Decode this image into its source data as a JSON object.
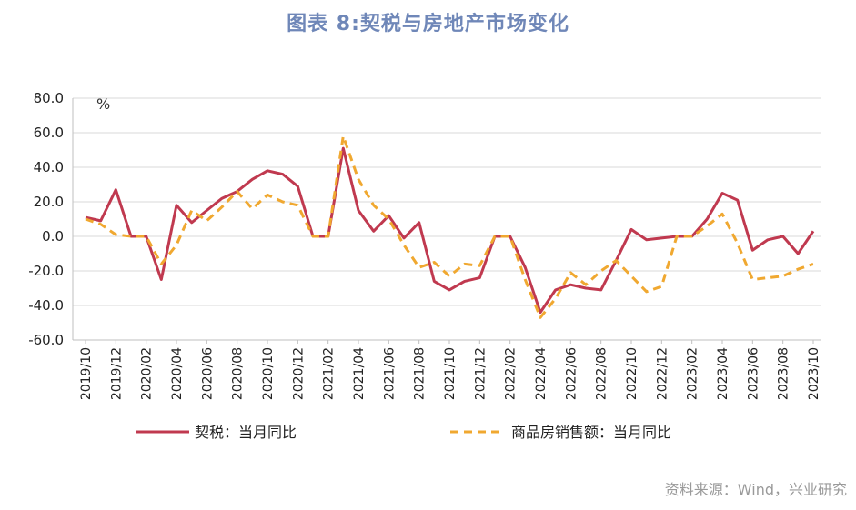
{
  "title": "图表 8:契税与房地产市场变化",
  "source": "资料来源：Wind，兴业研究",
  "chart_data": {
    "type": "line",
    "unit_label": "%",
    "ylim": [
      -60,
      80
    ],
    "yticks": [
      "80.0",
      "60.0",
      "40.0",
      "20.0",
      "0.0",
      "-20.0",
      "-40.0",
      "-60.0"
    ],
    "x": [
      "2019/10",
      "2019/11",
      "2019/12",
      "2020/01",
      "2020/02",
      "2020/03",
      "2020/04",
      "2020/05",
      "2020/06",
      "2020/07",
      "2020/08",
      "2020/09",
      "2020/10",
      "2020/11",
      "2020/12",
      "2021/01",
      "2021/02",
      "2021/03",
      "2021/04",
      "2021/05",
      "2021/06",
      "2021/07",
      "2021/08",
      "2021/09",
      "2021/10",
      "2021/11",
      "2021/12",
      "2022/01",
      "2022/02",
      "2022/03",
      "2022/04",
      "2022/05",
      "2022/06",
      "2022/07",
      "2022/08",
      "2022/09",
      "2022/10",
      "2022/11",
      "2022/12",
      "2023/01",
      "2023/02",
      "2023/03",
      "2023/04",
      "2023/05",
      "2023/06",
      "2023/07",
      "2023/08",
      "2023/09",
      "2023/10"
    ],
    "xtick_labels": [
      "2019/10",
      "2019/12",
      "2020/02",
      "2020/04",
      "2020/06",
      "2020/08",
      "2020/10",
      "2020/12",
      "2021/02",
      "2021/04",
      "2021/06",
      "2021/08",
      "2021/10",
      "2021/12",
      "2022/02",
      "2022/04",
      "2022/06",
      "2022/08",
      "2022/10",
      "2022/12",
      "2023/02",
      "2023/04",
      "2023/06",
      "2023/08",
      "2023/10"
    ],
    "grid": true,
    "legend_position": "bottom",
    "series": [
      {
        "name": "契税：当月同比",
        "color": "#c0394f",
        "style": "solid",
        "values": [
          11,
          9,
          27,
          0,
          0,
          -25,
          18,
          8,
          15,
          22,
          26,
          33,
          38,
          36,
          29,
          0,
          0,
          51,
          15,
          3,
          12,
          -1,
          8,
          -26,
          -31,
          -26,
          -24,
          0,
          0,
          -18,
          -44,
          -31,
          -28,
          -30,
          -31,
          -14,
          4,
          -2,
          -1,
          0,
          0,
          10,
          25,
          21,
          -8,
          -2,
          0,
          -10,
          3
        ]
      },
      {
        "name": "商品房销售额：当月同比",
        "color": "#f0a830",
        "style": "dashed",
        "values": [
          10,
          7,
          1,
          0,
          0,
          -16,
          -5,
          15,
          9,
          17,
          26,
          16,
          24,
          20,
          18,
          0,
          0,
          58,
          33,
          18,
          10,
          -5,
          -18,
          -15,
          -23,
          -16,
          -17,
          0,
          0,
          -25,
          -47,
          -36,
          -21,
          -28,
          -20,
          -14,
          -23,
          -32,
          -29,
          0,
          0,
          6,
          13,
          -4,
          -25,
          -24,
          -23,
          -19,
          -16
        ]
      }
    ]
  }
}
